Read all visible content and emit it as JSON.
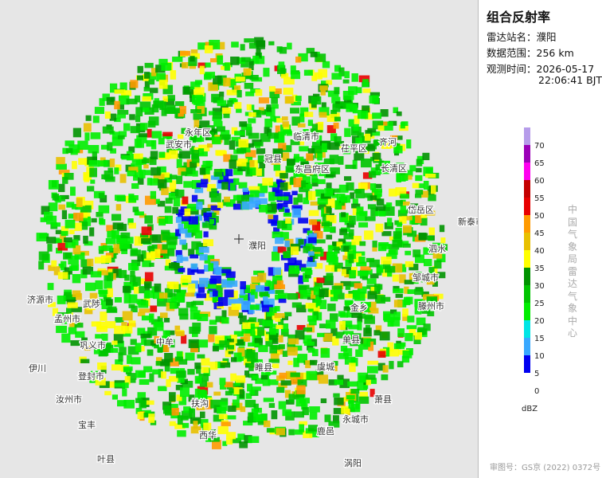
{
  "panel": {
    "title": "组合反射率",
    "fields": [
      {
        "label": "雷达站名：",
        "value": "濮阳"
      },
      {
        "label": "数据范围：",
        "value": "256 km"
      },
      {
        "label": "观测时间：",
        "value": "2026-05-17"
      }
    ],
    "time_line2": "22:06:41 BJT",
    "legend": {
      "unit": "dBZ",
      "ticks": [
        70,
        65,
        60,
        55,
        50,
        45,
        40,
        35,
        30,
        25,
        20,
        15,
        10,
        5,
        0
      ],
      "colors": [
        "#b69cea",
        "#9b00b8",
        "#ff00f0",
        "#c40000",
        "#e80000",
        "#ff9a00",
        "#e8c000",
        "#ffff00",
        "#009300",
        "#00c400",
        "#00ee00",
        "#00e5e5",
        "#38a8ff",
        "#0000f0"
      ]
    },
    "credit": "中国气象局雷达气象中心",
    "approval": "审图号：GS京 (2022) 0372号"
  },
  "map": {
    "places": [
      "武安市",
      "永年区",
      "临清市",
      "冠县",
      "东昌府区",
      "茌平区",
      "齐河",
      "长清区",
      "岱岳区",
      "新泰市",
      "泗水",
      "邹城市",
      "滕州市",
      "金乡",
      "单县",
      "虞城",
      "永城市",
      "萧县",
      "睢县",
      "中牟",
      "巩义市",
      "登封市",
      "伊川",
      "汝州市",
      "宝丰",
      "叶县",
      "西华",
      "扶沟",
      "鹿邑",
      "涡阳",
      "济源市",
      "孟州市",
      "武陟",
      "濮阳"
    ]
  }
}
